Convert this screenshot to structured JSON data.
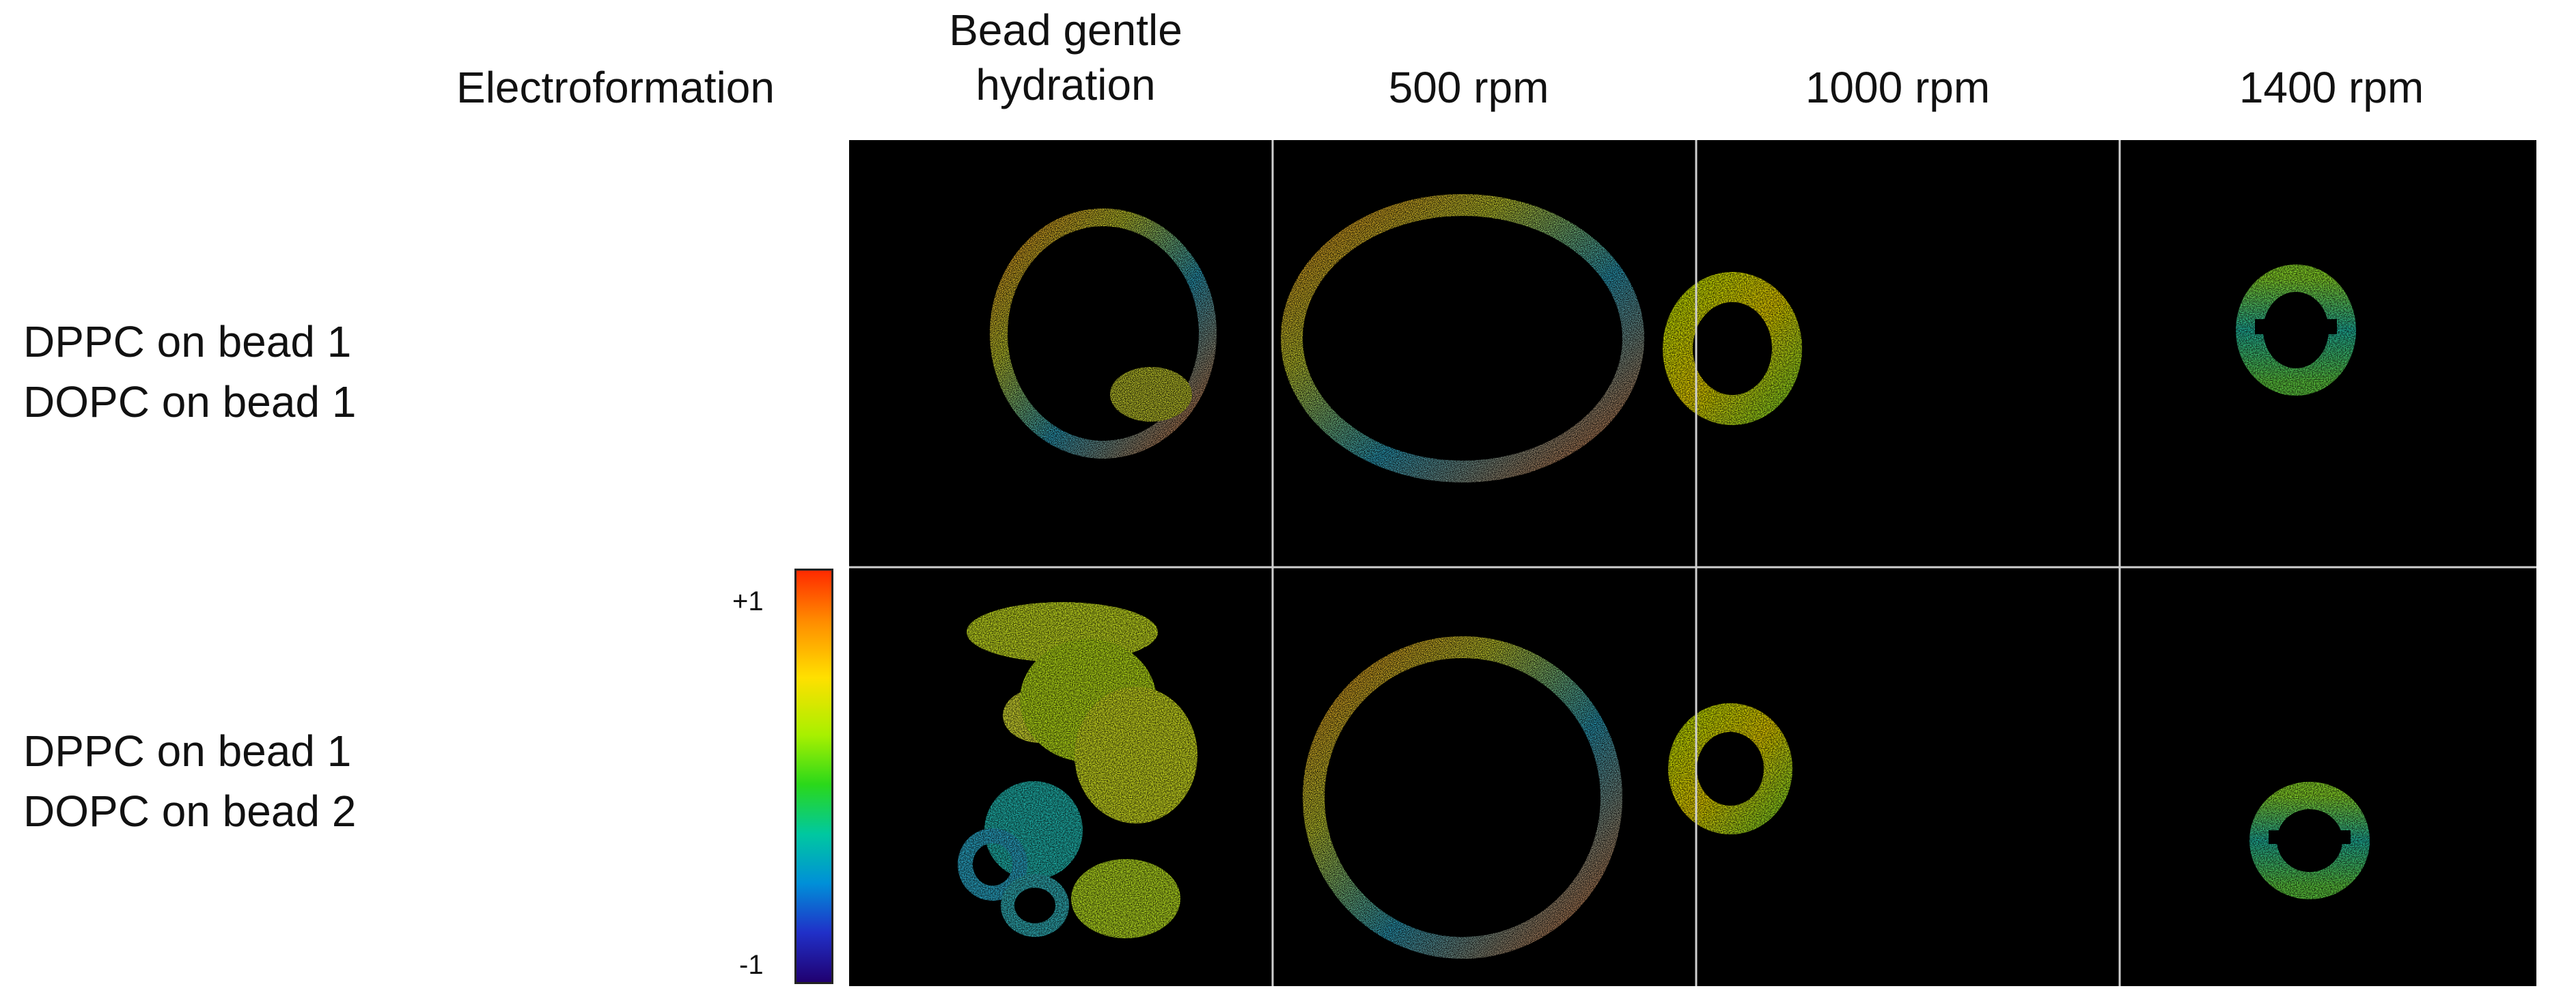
{
  "columns": [
    {
      "id": "electroformation",
      "label": "Electroformation"
    },
    {
      "id": "bead-gentle-hydration",
      "label_line1": "Bead gentle",
      "label_line2": "hydration"
    },
    {
      "id": "500-rpm",
      "label": "500 rpm"
    },
    {
      "id": "1000-rpm",
      "label": "1000 rpm"
    },
    {
      "id": "1400-rpm",
      "label": "1400 rpm"
    }
  ],
  "rows": [
    {
      "line1": "DPPC on bead 1",
      "line2": "DOPC on bead 1"
    },
    {
      "line1": "DPPC on bead 1",
      "line2": "DOPC on bead 2"
    }
  ],
  "colorbar": {
    "max_label": "+1",
    "min_label": "-1"
  },
  "colors": {
    "background": "#000000",
    "grid_line": "#cfcfcf"
  }
}
